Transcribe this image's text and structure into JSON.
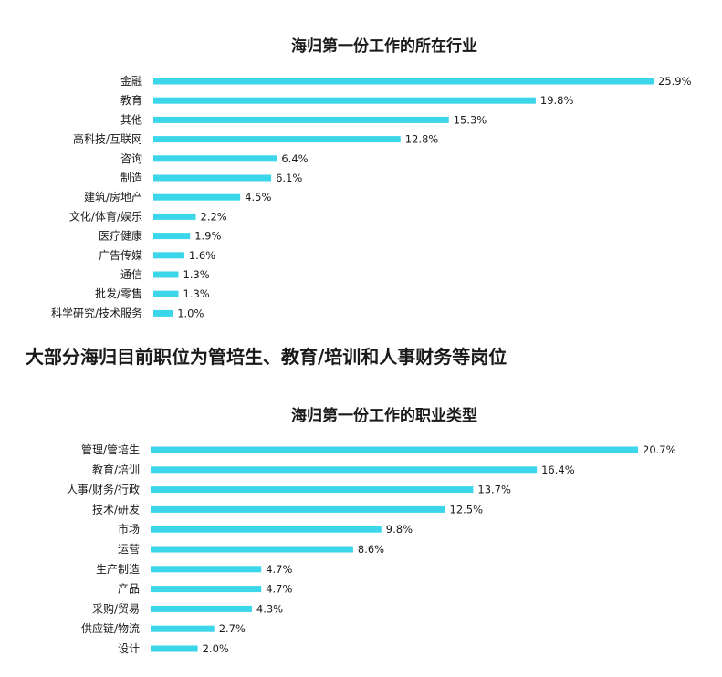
{
  "section_heading": "大部分海归目前职位为管培生、教育/培训和人事财务等岗位",
  "colors": {
    "bar": "#3cd6ea"
  },
  "chart_data": [
    {
      "type": "bar",
      "orientation": "horizontal",
      "title": "海归第一份工作的所在行业",
      "categories": [
        "金融",
        "教育",
        "其他",
        "高科技/互联网",
        "咨询",
        "制造",
        "建筑/房地产",
        "文化/体育/娱乐",
        "医疗健康",
        "广告传媒",
        "通信",
        "批发/零售",
        "科学研究/技术服务"
      ],
      "values": [
        25.9,
        19.8,
        15.3,
        12.8,
        6.4,
        6.1,
        4.5,
        2.2,
        1.9,
        1.6,
        1.3,
        1.3,
        1.0
      ],
      "value_labels": [
        "25.9%",
        "19.8%",
        "15.3%",
        "12.8%",
        "6.4%",
        "6.1%",
        "4.5%",
        "2.2%",
        "1.9%",
        "1.6%",
        "1.3%",
        "1.3%",
        "1.0%"
      ],
      "xlim": [
        0,
        25.9
      ],
      "grid": false,
      "legend": "none"
    },
    {
      "type": "bar",
      "orientation": "horizontal",
      "title": "海归第一份工作的职业类型",
      "categories": [
        "管理/管培生",
        "教育/培训",
        "人事/财务/行政",
        "技术/研发",
        "市场",
        "运营",
        "生产制造",
        "产品",
        "采购/贸易",
        "供应链/物流",
        "设计"
      ],
      "values": [
        20.7,
        16.4,
        13.7,
        12.5,
        9.8,
        8.6,
        4.7,
        4.7,
        4.3,
        2.7,
        2.0
      ],
      "value_labels": [
        "20.7%",
        "16.4%",
        "13.7%",
        "12.5%",
        "9.8%",
        "8.6%",
        "4.7%",
        "4.7%",
        "4.3%",
        "2.7%",
        "2.0%"
      ],
      "xlim": [
        0,
        20.7
      ],
      "grid": false,
      "legend": "none"
    }
  ]
}
